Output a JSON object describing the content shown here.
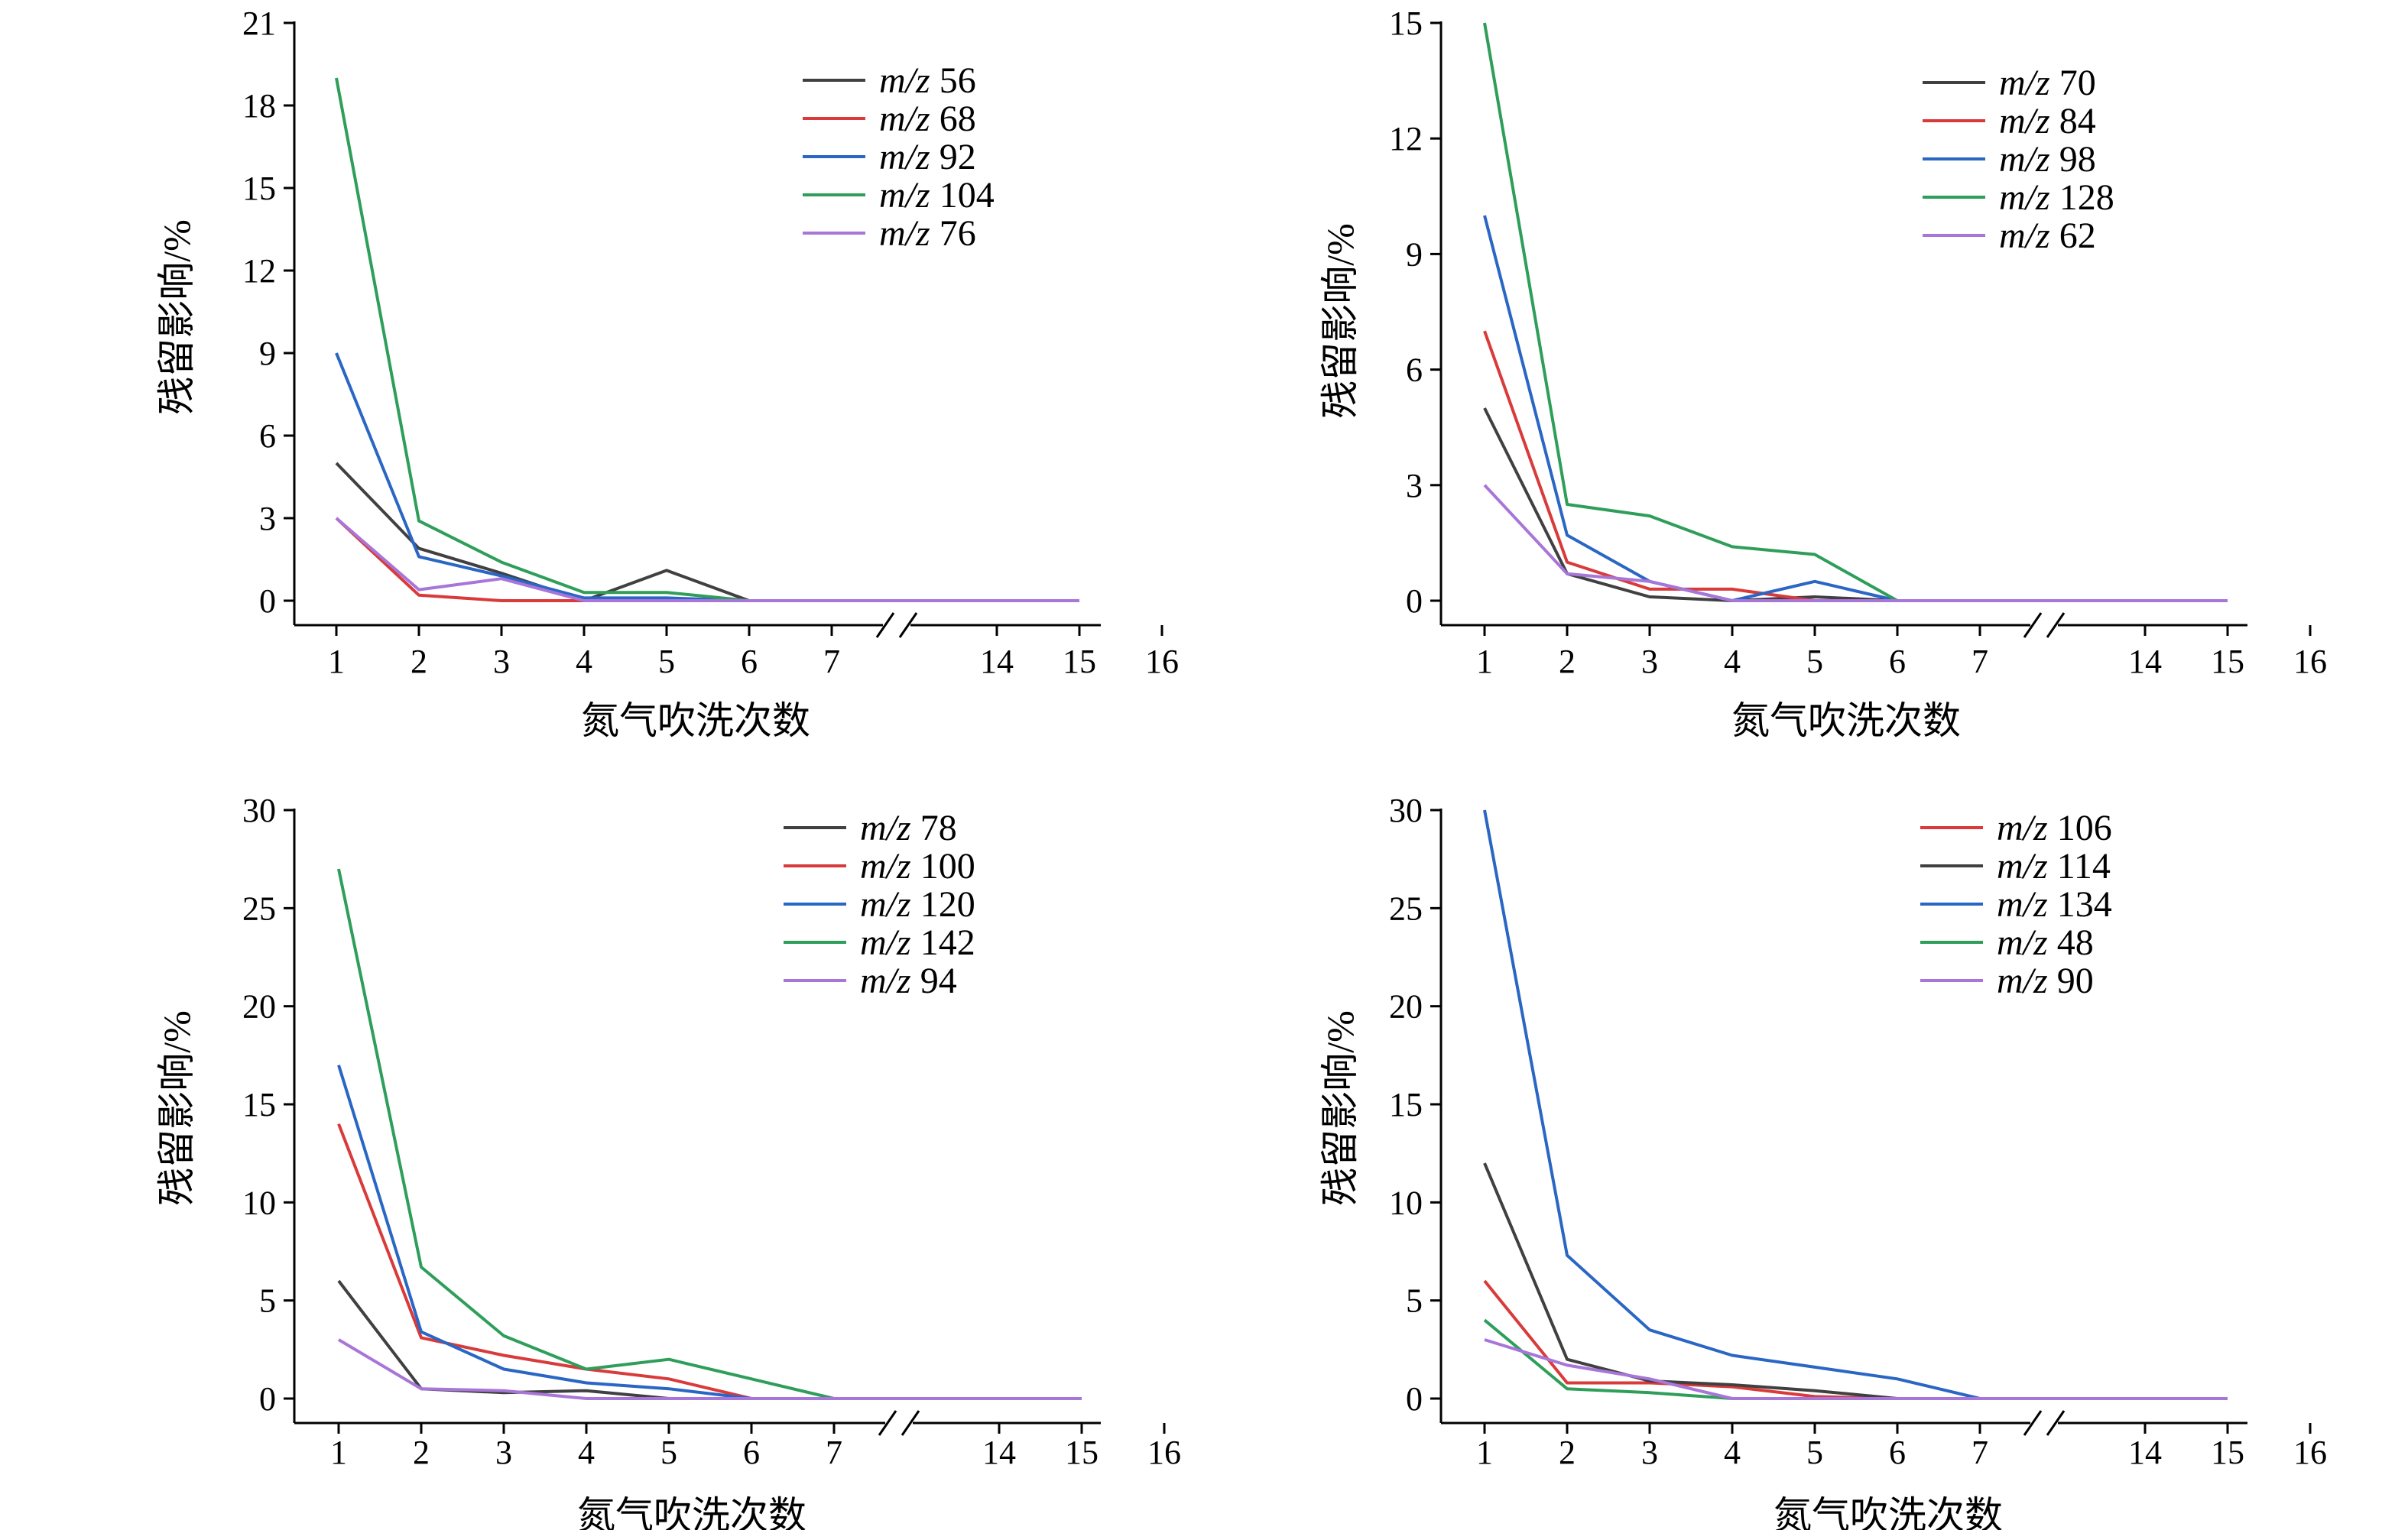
{
  "chart_data": [
    {
      "type": "line",
      "xlabel": "氮气吹洗次数",
      "ylabel": "残留影响/%",
      "x": [
        1,
        2,
        3,
        4,
        5,
        6,
        7,
        14,
        15
      ],
      "xticks": [
        "1",
        "2",
        "3",
        "4",
        "5",
        "6",
        "7",
        "14",
        "15",
        "16"
      ],
      "yticks": [
        0,
        3,
        6,
        9,
        12,
        15,
        18,
        21
      ],
      "ylim": [
        -1,
        21
      ],
      "axis_break": "between 7 and 14",
      "legend_position": "top-right",
      "series": [
        {
          "name": "m/z 56",
          "mz": "m/z",
          "num": "56",
          "color": "#404040",
          "values": [
            5,
            1.9,
            1,
            0,
            1.1,
            0,
            0,
            0,
            0
          ]
        },
        {
          "name": "m/z 68",
          "mz": "m/z",
          "num": "68",
          "color": "#d93a3a",
          "values": [
            3,
            0.2,
            0,
            0,
            0,
            0,
            0,
            0,
            0
          ]
        },
        {
          "name": "m/z 92",
          "mz": "m/z",
          "num": "92",
          "color": "#2a66c4",
          "values": [
            9,
            1.6,
            0.9,
            0.1,
            0.1,
            0,
            0,
            0,
            0
          ]
        },
        {
          "name": "m/z 104",
          "mz": "m/z",
          "num": "104",
          "color": "#2e9e5a",
          "values": [
            19,
            2.9,
            1.4,
            0.3,
            0.3,
            0,
            0,
            0,
            0
          ]
        },
        {
          "name": "m/z 76",
          "mz": "m/z",
          "num": "76",
          "color": "#a875d8",
          "values": [
            3,
            0.4,
            0.8,
            0,
            0,
            0,
            0,
            0,
            0
          ]
        }
      ]
    },
    {
      "type": "line",
      "xlabel": "氮气吹洗次数",
      "ylabel": "残留影响/%",
      "x": [
        1,
        2,
        3,
        4,
        5,
        6,
        7,
        14,
        15
      ],
      "xticks": [
        "1",
        "2",
        "3",
        "4",
        "5",
        "6",
        "7",
        "14",
        "15",
        "16"
      ],
      "yticks": [
        0,
        3,
        6,
        9,
        12,
        15
      ],
      "ylim": [
        -1,
        15
      ],
      "axis_break": "between 7 and 14",
      "legend_position": "top-right",
      "series": [
        {
          "name": "m/z 70",
          "mz": "m/z",
          "num": "70",
          "color": "#404040",
          "values": [
            5,
            0.7,
            0.1,
            0,
            0.1,
            0,
            0,
            0,
            0
          ]
        },
        {
          "name": "m/z 84",
          "mz": "m/z",
          "num": "84",
          "color": "#d93a3a",
          "values": [
            7,
            1,
            0.3,
            0.3,
            0,
            0,
            0,
            0,
            0
          ]
        },
        {
          "name": "m/z 98",
          "mz": "m/z",
          "num": "98",
          "color": "#2a66c4",
          "values": [
            10,
            1.7,
            0.5,
            0,
            0.5,
            0,
            0,
            0,
            0
          ]
        },
        {
          "name": "m/z 128",
          "mz": "m/z",
          "num": "128",
          "color": "#2e9e5a",
          "values": [
            15,
            2.5,
            2.2,
            1.4,
            1.2,
            0,
            0,
            0,
            0
          ]
        },
        {
          "name": "m/z 62",
          "mz": "m/z",
          "num": "62",
          "color": "#a875d8",
          "values": [
            3,
            0.7,
            0.5,
            0,
            0,
            0,
            0,
            0,
            0
          ]
        }
      ]
    },
    {
      "type": "line",
      "xlabel": "氮气吹洗次数",
      "ylabel": "残留影响/%",
      "x": [
        1,
        2,
        3,
        4,
        5,
        6,
        7,
        14,
        15
      ],
      "xticks": [
        "1",
        "2",
        "3",
        "4",
        "5",
        "6",
        "7",
        "14",
        "15",
        "16"
      ],
      "yticks": [
        0,
        5,
        10,
        15,
        20,
        25,
        30
      ],
      "ylim": [
        -1,
        30
      ],
      "axis_break": "between 7 and 14",
      "legend_position": "top-right",
      "series": [
        {
          "name": "m/z 78",
          "mz": "m/z",
          "num": "78",
          "color": "#404040",
          "values": [
            6,
            0.5,
            0.3,
            0.4,
            0,
            0,
            0,
            0,
            0
          ]
        },
        {
          "name": "m/z 100",
          "mz": "m/z",
          "num": "100",
          "color": "#d93a3a",
          "values": [
            14,
            3.1,
            2.2,
            1.5,
            1,
            0,
            0,
            0,
            0
          ]
        },
        {
          "name": "m/z 120",
          "mz": "m/z",
          "num": "120",
          "color": "#2a66c4",
          "values": [
            17,
            3.4,
            1.5,
            0.8,
            0.5,
            0,
            0,
            0,
            0
          ]
        },
        {
          "name": "m/z 142",
          "mz": "m/z",
          "num": "142",
          "color": "#2e9e5a",
          "values": [
            27,
            6.7,
            3.2,
            1.5,
            2,
            1,
            0,
            0,
            0
          ]
        },
        {
          "name": "m/z 94",
          "mz": "m/z",
          "num": "94",
          "color": "#a875d8",
          "values": [
            3,
            0.5,
            0.4,
            0,
            0,
            0,
            0,
            0,
            0
          ]
        }
      ]
    },
    {
      "type": "line",
      "xlabel": "氮气吹洗次数",
      "ylabel": "残留影响/%",
      "x": [
        1,
        2,
        3,
        4,
        5,
        6,
        7,
        14,
        15
      ],
      "xticks": [
        "1",
        "2",
        "3",
        "4",
        "5",
        "6",
        "7",
        "14",
        "15",
        "16"
      ],
      "yticks": [
        0,
        5,
        10,
        15,
        20,
        25,
        30
      ],
      "ylim": [
        -1,
        30
      ],
      "axis_break": "between 7 and 14",
      "legend_position": "top-right",
      "series": [
        {
          "name": "m/z 106",
          "mz": "m/z",
          "num": "106",
          "color": "#d93a3a",
          "values": [
            6,
            0.8,
            0.8,
            0.6,
            0.1,
            0,
            0,
            0,
            0
          ]
        },
        {
          "name": "m/z 114",
          "mz": "m/z",
          "num": "114",
          "color": "#404040",
          "values": [
            12,
            2,
            0.9,
            0.7,
            0.4,
            0,
            0,
            0,
            0
          ]
        },
        {
          "name": "m/z 134",
          "mz": "m/z",
          "num": "134",
          "color": "#2a66c4",
          "values": [
            30,
            7.3,
            3.5,
            2.2,
            1.6,
            1,
            0,
            0,
            0
          ]
        },
        {
          "name": "m/z 48",
          "mz": "m/z",
          "num": "48",
          "color": "#2e9e5a",
          "values": [
            4,
            0.5,
            0.3,
            0,
            0,
            0,
            0,
            0,
            0
          ]
        },
        {
          "name": "m/z 90",
          "mz": "m/z",
          "num": "90",
          "color": "#a875d8",
          "values": [
            3,
            1.7,
            1,
            0,
            0,
            0,
            0,
            0,
            0
          ]
        }
      ]
    }
  ]
}
